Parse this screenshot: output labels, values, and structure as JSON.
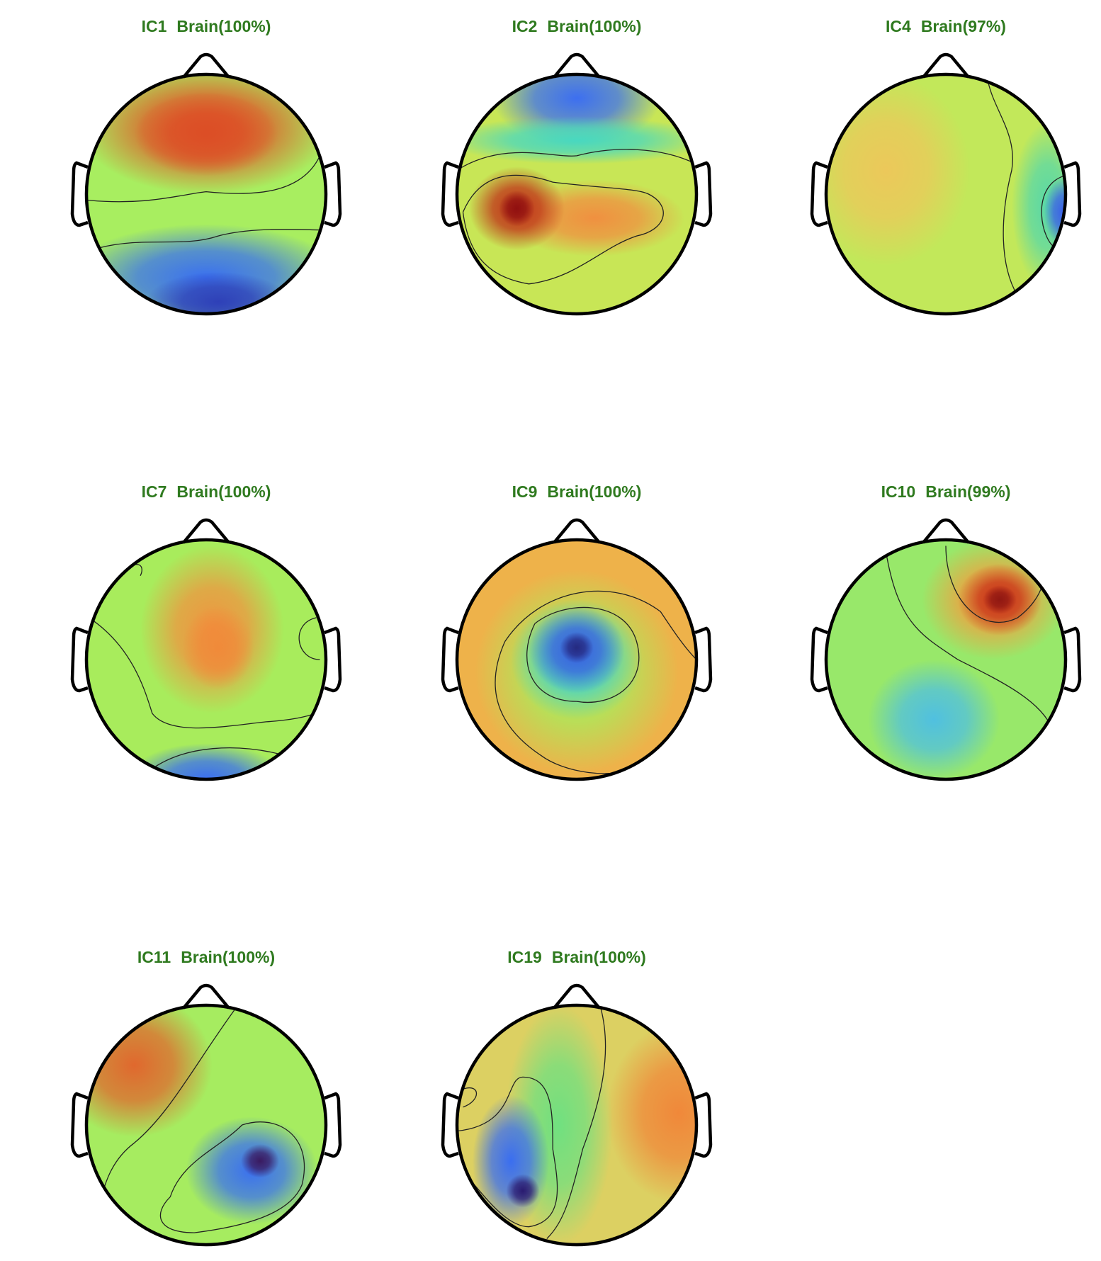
{
  "panels": [
    {
      "component": "IC1",
      "classification": "Brain(100%)"
    },
    {
      "component": "IC2",
      "classification": "Brain(100%)"
    },
    {
      "component": "IC4",
      "classification": "Brain(97%)"
    },
    {
      "component": "IC7",
      "classification": "Brain(100%)"
    },
    {
      "component": "IC9",
      "classification": "Brain(100%)"
    },
    {
      "component": "IC10",
      "classification": "Brain(99%)"
    },
    {
      "component": "IC11",
      "classification": "Brain(100%)"
    },
    {
      "component": "IC19",
      "classification": "Brain(100%)"
    }
  ]
}
